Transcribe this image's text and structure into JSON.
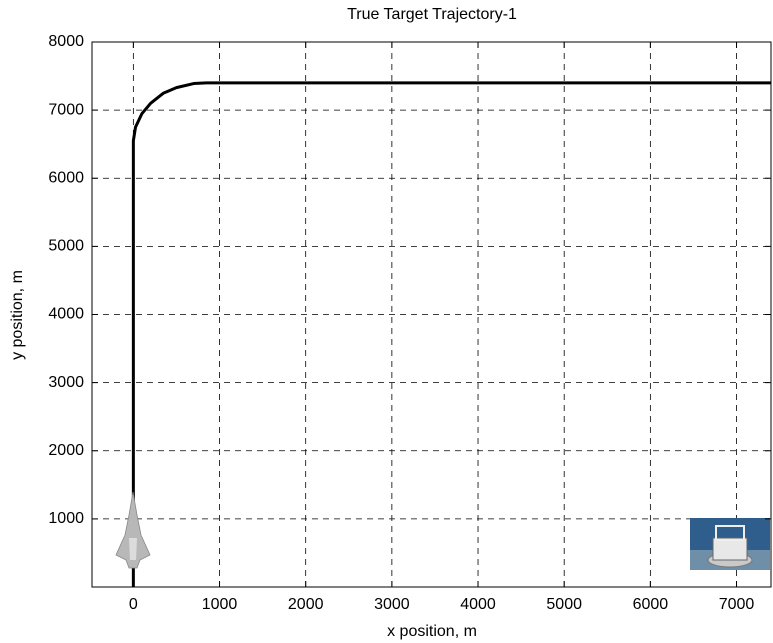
{
  "chart_data": {
    "type": "line",
    "title": "True Target Trajectory-1",
    "x_label": "x position, m",
    "y_label": "y position, m",
    "x": [
      0,
      0,
      25,
      100,
      200,
      350,
      500,
      700,
      850,
      7400
    ],
    "values": [
      0,
      6550,
      6750,
      6950,
      7100,
      7250,
      7330,
      7390,
      7400,
      7400
    ],
    "color": "#000000",
    "xlim": [
      -480,
      7400
    ],
    "ylim": [
      0,
      8000
    ],
    "xticks": [
      0,
      1000,
      2000,
      3000,
      4000,
      5000,
      6000,
      7000
    ],
    "yticks": [
      1000,
      2000,
      3000,
      4000,
      5000,
      6000,
      7000,
      8000
    ],
    "grid": true
  }
}
